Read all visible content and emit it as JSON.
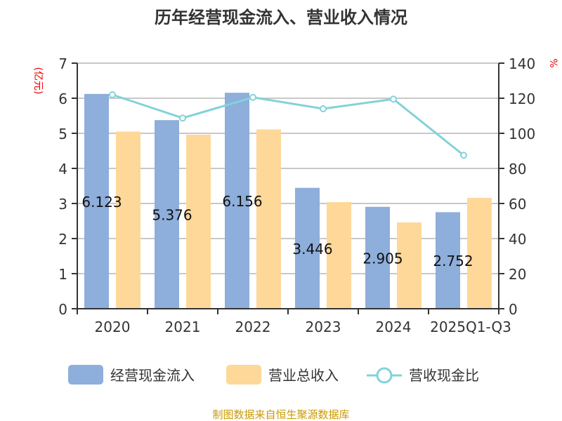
{
  "chart_data": {
    "type": "bar",
    "title": "历年经营现金流入、营业收入情况",
    "ylabel": "(亿元)",
    "y2label": "%",
    "ylim": [
      0,
      7
    ],
    "y2lim": [
      0,
      140
    ],
    "yticks": [
      "0",
      "1",
      "2",
      "3",
      "4",
      "5",
      "6",
      "7"
    ],
    "y2ticks": [
      "0",
      "20",
      "40",
      "60",
      "80",
      "100",
      "120",
      "140"
    ],
    "categories": [
      "2020",
      "2021",
      "2022",
      "2023",
      "2024",
      "2025Q1-Q3"
    ],
    "series": [
      {
        "name": "经营现金流入",
        "type": "bar",
        "axis": "left",
        "color": "#8eaedb",
        "values": [
          6.123,
          5.376,
          6.156,
          3.446,
          2.905,
          2.752
        ],
        "labels": [
          "6.123",
          "5.376",
          "6.156",
          "3.446",
          "2.905",
          "2.752"
        ]
      },
      {
        "name": "营业总收入",
        "type": "bar",
        "axis": "left",
        "color": "#fed899",
        "values": [
          5.05,
          4.96,
          5.11,
          3.04,
          2.46,
          3.16
        ]
      },
      {
        "name": "营收现金比",
        "type": "line",
        "axis": "right",
        "color": "#82d3d8",
        "values": [
          122,
          108.7,
          120.5,
          114,
          119.5,
          87.5
        ]
      }
    ],
    "grid": true,
    "legend": "bottom"
  },
  "footer": "制图数据来自恒生聚源数据库"
}
